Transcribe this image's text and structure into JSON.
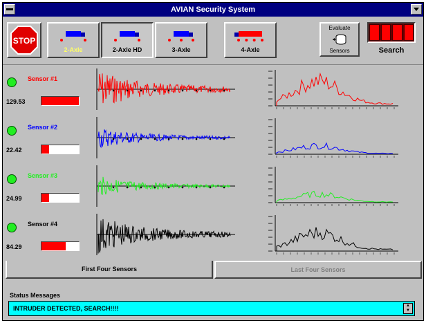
{
  "window": {
    "title": "AVIAN Security System"
  },
  "toolbar": {
    "stop_label": "STOP",
    "axle_buttons": [
      {
        "label": "2-Axle",
        "selected": false,
        "label_color": "#ffff66",
        "truck_color": "#0000ff"
      },
      {
        "label": "2-Axle HD",
        "selected": true,
        "label_color": "#000000",
        "truck_color": "#0000ff"
      },
      {
        "label": "3-Axle",
        "selected": false,
        "label_color": "#000000",
        "truck_color": "#0000ff"
      },
      {
        "label": "4-Axle",
        "selected": false,
        "label_color": "#000000",
        "truck_color": "#ff0000"
      }
    ],
    "evaluate_label": "Evaluate",
    "sensors_label": "Sensors",
    "search_label": "Search"
  },
  "sensors": [
    {
      "name": "Sensor #1",
      "value": "129.53",
      "level": 1.0,
      "color": "#ff0000",
      "amp": 1.0,
      "spec_amp": 1.0
    },
    {
      "name": "Sensor #2",
      "value": "22.42",
      "level": 0.2,
      "color": "#0000ff",
      "amp": 0.55,
      "spec_amp": 0.35
    },
    {
      "name": "Sensor #3",
      "value": "24.99",
      "level": 0.2,
      "color": "#22ee22",
      "amp": 0.5,
      "spec_amp": 0.35
    },
    {
      "name": "Sensor #4",
      "value": "84.29",
      "level": 0.65,
      "color": "#000000",
      "amp": 0.95,
      "spec_amp": 0.75
    }
  ],
  "tabs": [
    {
      "label": "First Four Sensors",
      "active": true
    },
    {
      "label": "Last Four Sensors",
      "active": false
    }
  ],
  "status": {
    "label": "Status Messages",
    "message": "INTRUDER DETECTED, SEARCH!!!!"
  }
}
